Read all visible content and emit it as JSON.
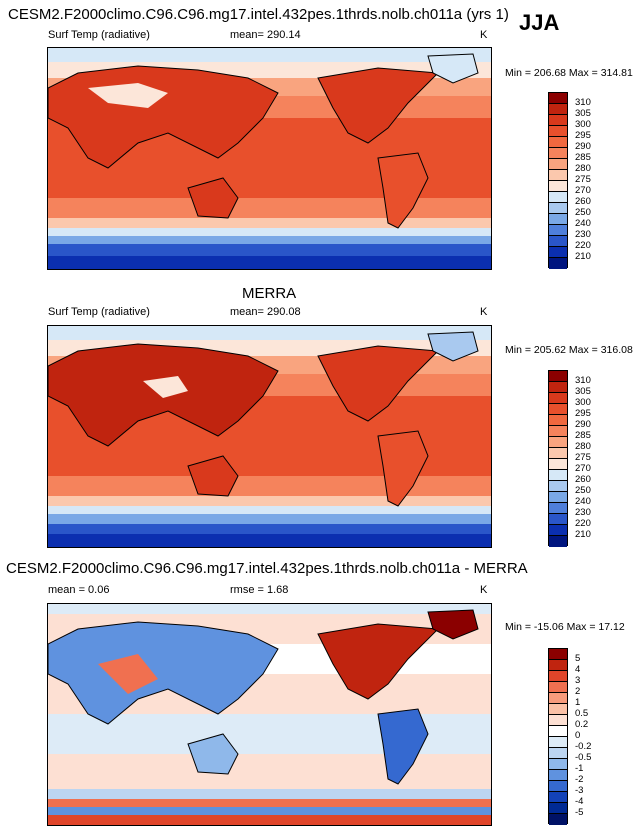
{
  "season": "JJA",
  "panels": [
    {
      "title": "CESM2.F2000climo.C96.C96.mg17.intel.432pes.1thrds.nolb.ch011a (yrs 1)",
      "variable": "Surf Temp (radiative)",
      "stat": "mean= 290.14",
      "units": "K",
      "minmax": "Min = 206.68 Max = 314.81",
      "colorbar": [
        "310",
        "305",
        "300",
        "295",
        "290",
        "285",
        "280",
        "275",
        "270",
        "260",
        "250",
        "240",
        "230",
        "220",
        "210"
      ],
      "colors": [
        "#8b0000",
        "#c0240f",
        "#d9391c",
        "#e8502c",
        "#f0683f",
        "#f5835c",
        "#f9a47f",
        "#fbc8ad",
        "#fce6d9",
        "#d6e8f7",
        "#a9c9ef",
        "#7aa8e6",
        "#4f7fdb",
        "#2a56c9",
        "#0b2fb0",
        "#00157f"
      ]
    },
    {
      "title": "MERRA",
      "variable": "Surf Temp (radiative)",
      "stat": "mean= 290.08",
      "units": "K",
      "minmax": "Min = 205.62 Max = 316.08",
      "colorbar": [
        "310",
        "305",
        "300",
        "295",
        "290",
        "285",
        "280",
        "275",
        "270",
        "260",
        "250",
        "240",
        "230",
        "220",
        "210"
      ],
      "colors": [
        "#8b0000",
        "#c0240f",
        "#d9391c",
        "#e8502c",
        "#f0683f",
        "#f5835c",
        "#f9a47f",
        "#fbc8ad",
        "#fce6d9",
        "#d6e8f7",
        "#a9c9ef",
        "#7aa8e6",
        "#4f7fdb",
        "#2a56c9",
        "#0b2fb0",
        "#00157f"
      ]
    },
    {
      "title": "CESM2.F2000climo.C96.C96.mg17.intel.432pes.1thrds.nolb.ch011a - MERRA",
      "variable": "mean =   0.06",
      "stat": "rmse =   1.68",
      "units": "K",
      "minmax": "Min = -15.06 Max =  17.12",
      "colorbar": [
        "5",
        "4",
        "3",
        "2",
        "1",
        "0.5",
        "0.2",
        "0",
        "-0.2",
        "-0.5",
        "-1",
        "-2",
        "-3",
        "-4",
        "-5"
      ],
      "colors": [
        "#8b0000",
        "#c0240f",
        "#e0452a",
        "#f07050",
        "#f79b7c",
        "#fbc1a6",
        "#fde0d3",
        "#ffffff",
        "#ddebf7",
        "#bcd5f1",
        "#8fb8ea",
        "#5f92df",
        "#3569d0",
        "#1342b8",
        "#002a95",
        "#001266"
      ]
    }
  ]
}
